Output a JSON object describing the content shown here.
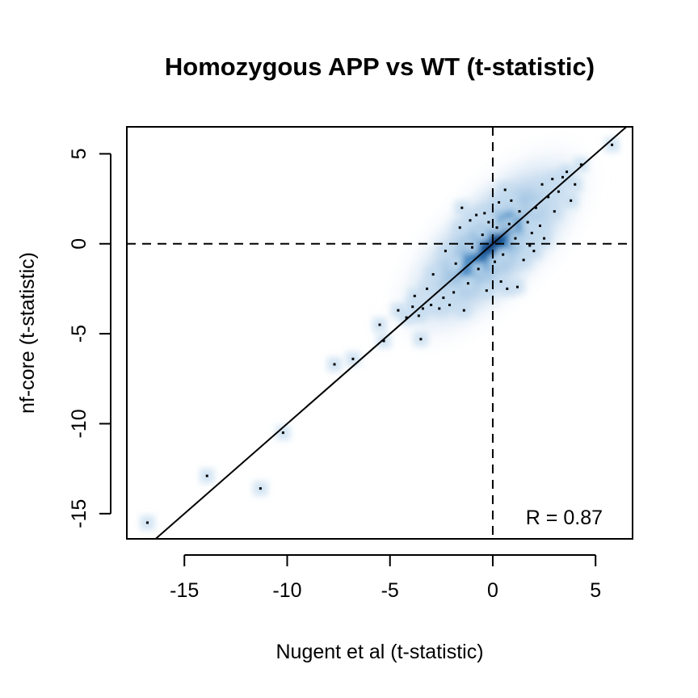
{
  "chart_data": {
    "type": "scatter",
    "title": "Homozygous APP vs WT (t-statistic)",
    "xlabel": "Nugent et al (t-statistic)",
    "ylabel": "nf-core (t-statistic)",
    "xlim": [
      -17.8,
      6.8
    ],
    "ylim": [
      -16.4,
      6.5
    ],
    "x_ticks": [
      -15,
      -10,
      -5,
      0,
      5
    ],
    "y_ticks": [
      -15,
      -10,
      -5,
      0,
      5
    ],
    "x_tick_labels": [
      "-15",
      "-10",
      "-5",
      "0",
      "5"
    ],
    "y_tick_labels": [
      "-15",
      "-10",
      "-5",
      "0",
      "5"
    ],
    "reference_lines": {
      "vertical": 0,
      "horizontal": 0,
      "style": "dashed"
    },
    "diagonal": {
      "slope": 1,
      "intercept": 0
    },
    "annotation": "R = 0.87",
    "points": [
      {
        "x": -16.8,
        "y": -15.5
      },
      {
        "x": -13.9,
        "y": -12.9
      },
      {
        "x": -11.3,
        "y": -13.6
      },
      {
        "x": -10.2,
        "y": -10.5
      },
      {
        "x": -7.7,
        "y": -6.7
      },
      {
        "x": -6.8,
        "y": -6.4
      },
      {
        "x": -5.5,
        "y": -4.5
      },
      {
        "x": -5.3,
        "y": -5.4
      },
      {
        "x": -3.5,
        "y": -5.3
      },
      {
        "x": -4.6,
        "y": -3.7
      },
      {
        "x": -4.2,
        "y": -4.1
      },
      {
        "x": -3.9,
        "y": -3.5
      },
      {
        "x": -3.8,
        "y": -2.9
      },
      {
        "x": -3.6,
        "y": -4.0
      },
      {
        "x": -3.4,
        "y": -3.6
      },
      {
        "x": -3.2,
        "y": -2.5
      },
      {
        "x": -3.0,
        "y": -3.4
      },
      {
        "x": -2.9,
        "y": -1.7
      },
      {
        "x": -2.6,
        "y": -3.6
      },
      {
        "x": -2.4,
        "y": -3.0
      },
      {
        "x": -2.3,
        "y": -0.4
      },
      {
        "x": -2.1,
        "y": -3.4
      },
      {
        "x": -1.9,
        "y": -2.7
      },
      {
        "x": -1.8,
        "y": -1.1
      },
      {
        "x": -1.6,
        "y": 0.9
      },
      {
        "x": -1.5,
        "y": 2.0
      },
      {
        "x": -1.4,
        "y": -3.7
      },
      {
        "x": -1.2,
        "y": -2.2
      },
      {
        "x": -1.1,
        "y": 1.3
      },
      {
        "x": -1.0,
        "y": -0.2
      },
      {
        "x": -0.8,
        "y": 1.6
      },
      {
        "x": -0.7,
        "y": -1.4
      },
      {
        "x": -0.5,
        "y": 0.5
      },
      {
        "x": -0.4,
        "y": 1.7
      },
      {
        "x": -0.3,
        "y": -2.6
      },
      {
        "x": -0.2,
        "y": 1.2
      },
      {
        "x": 0.1,
        "y": -1.0
      },
      {
        "x": 0.2,
        "y": 0.9
      },
      {
        "x": 0.3,
        "y": 2.3
      },
      {
        "x": 0.4,
        "y": -2.1
      },
      {
        "x": 0.5,
        "y": -0.6
      },
      {
        "x": 0.6,
        "y": 3.0
      },
      {
        "x": 0.7,
        "y": -2.5
      },
      {
        "x": 0.8,
        "y": 1.1
      },
      {
        "x": 0.9,
        "y": 2.4
      },
      {
        "x": 1.1,
        "y": 0.3
      },
      {
        "x": 1.2,
        "y": -2.4
      },
      {
        "x": 1.3,
        "y": 1.8
      },
      {
        "x": 1.5,
        "y": -0.9
      },
      {
        "x": 1.7,
        "y": 1.2
      },
      {
        "x": 1.8,
        "y": -0.1
      },
      {
        "x": 1.9,
        "y": 0.6
      },
      {
        "x": 2.0,
        "y": -0.4
      },
      {
        "x": 2.1,
        "y": 2.0
      },
      {
        "x": 2.3,
        "y": 1.0
      },
      {
        "x": 2.4,
        "y": 3.3
      },
      {
        "x": 2.5,
        "y": 0.3
      },
      {
        "x": 2.7,
        "y": 2.6
      },
      {
        "x": 2.9,
        "y": 3.6
      },
      {
        "x": 3.0,
        "y": 1.8
      },
      {
        "x": 3.2,
        "y": 2.9
      },
      {
        "x": 3.4,
        "y": 3.7
      },
      {
        "x": 3.6,
        "y": 4.0
      },
      {
        "x": 3.8,
        "y": 2.4
      },
      {
        "x": 4.0,
        "y": 3.3
      },
      {
        "x": 4.3,
        "y": 4.4
      },
      {
        "x": 5.8,
        "y": 5.5
      }
    ],
    "density": {
      "center": [
        0,
        0
      ],
      "major_sd": 1.6,
      "minor_sd": 0.55,
      "angle_deg": 45
    }
  }
}
